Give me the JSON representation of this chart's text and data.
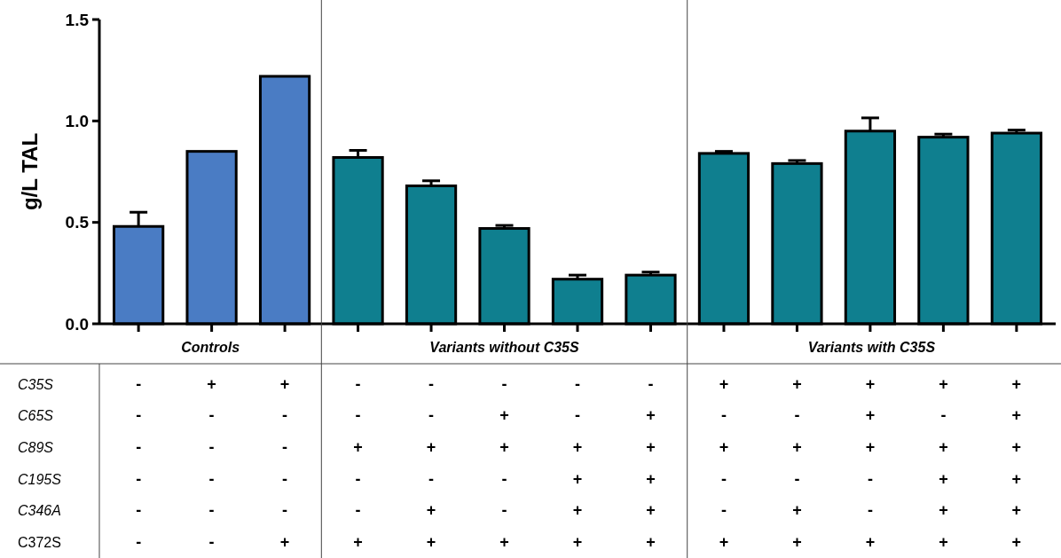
{
  "chart_data": {
    "type": "bar",
    "ylabel": "g/L TAL",
    "categories": [
      "-\n-\n-\n-\n-\n-",
      "+\n-\n-\n-\n-\n-",
      "+\n-\n-\n-\n-\n+",
      "-\n-\n+\n-\n-\n+",
      "-\n-\n+\n-\n+\n+",
      "-\n+\n+\n-\n-\n+",
      "-\n-\n+\n+\n+\n+",
      "-\n+\n+\n+\n+\n+",
      "+\n-\n+\n-\n-\n+",
      "+\n-\n+\n-\n+\n+",
      "+\n+\n+\n-\n-\n+",
      "+\n-\n+\n+\n+\n+",
      "+\n+\n+\n+\n+\n+"
    ],
    "values": [
      0.48,
      0.85,
      1.22,
      0.82,
      0.68,
      0.47,
      0.22,
      0.24,
      0.84,
      0.79,
      0.95,
      0.92,
      0.94
    ],
    "errors": [
      0.07,
      null,
      null,
      0.035,
      0.025,
      0.015,
      0.02,
      0.015,
      0.01,
      0.015,
      0.065,
      0.015,
      0.015
    ],
    "colors": [
      "#4a7cc4",
      "#4a7cc4",
      "#4a7cc4",
      "#0f7f8f",
      "#0f7f8f",
      "#0f7f8f",
      "#0f7f8f",
      "#0f7f8f",
      "#0f7f8f",
      "#0f7f8f",
      "#0f7f8f",
      "#0f7f8f",
      "#0f7f8f"
    ],
    "ylim": [
      0,
      1.5
    ],
    "yticks": [
      {
        "value": 0,
        "label": "0.0"
      },
      {
        "value": 0.5,
        "label": "0.5"
      },
      {
        "value": 1,
        "label": "1.0"
      },
      {
        "value": 1.5,
        "label": "1.5"
      }
    ],
    "grid": false,
    "annotations": [
      "Controls",
      "Variants without C35S",
      "Variants with C35S",
      "C35S",
      "C65S",
      "C89S",
      "C195S",
      "C346A",
      "C372S"
    ]
  }
}
